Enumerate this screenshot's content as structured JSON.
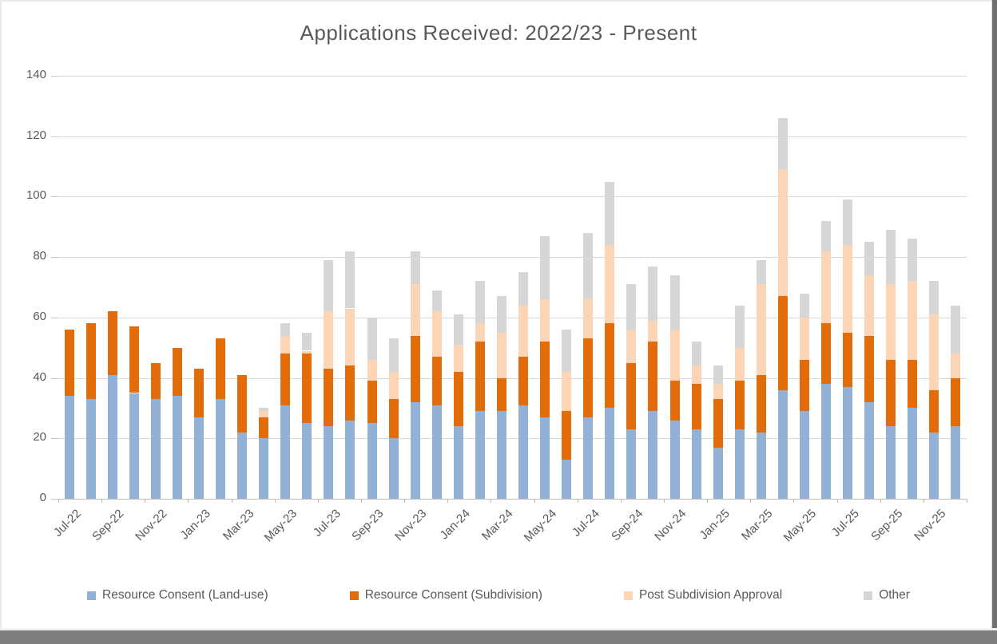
{
  "window": {
    "bottom_bar_color": "#7f7f7f",
    "right_border_color": "#6f6f6f"
  },
  "colors": {
    "text": "#595959",
    "gridline": "#d9d9d9",
    "axis": "#bfbfbf",
    "background": "#ffffff"
  },
  "chart_data": {
    "type": "bar",
    "variant": "stacked-column",
    "title": "Applications Received: 2022/23 - Present",
    "xlabel": "",
    "ylabel": "",
    "ylim": [
      0,
      140
    ],
    "ytick_step": 20,
    "grid": true,
    "legend_position": "bottom",
    "x_label_every": 2,
    "categories": [
      "Jul-22",
      "Aug-22",
      "Sep-22",
      "Oct-22",
      "Nov-22",
      "Dec-22",
      "Jan-23",
      "Feb-23",
      "Mar-23",
      "Apr-23",
      "May-23",
      "Jun-23",
      "Jul-23",
      "Aug-23",
      "Sep-23",
      "Oct-23",
      "Nov-23",
      "Dec-23",
      "Jan-24",
      "Feb-24",
      "Mar-24",
      "Apr-24",
      "May-24",
      "Jun-24",
      "Jul-24",
      "Aug-24",
      "Sep-24",
      "Oct-24",
      "Nov-24",
      "Dec-24",
      "Jan-25",
      "Feb-25",
      "Mar-25",
      "Apr-25",
      "May-25",
      "Jun-25",
      "Jul-25",
      "Aug-25",
      "Sep-25",
      "Oct-25",
      "Nov-25",
      "Dec-25"
    ],
    "series": [
      {
        "name": "Resource Consent (Land-use)",
        "color": "#92b1d5",
        "values": [
          34,
          33,
          41,
          35,
          33,
          34,
          27,
          33,
          22,
          20,
          31,
          25,
          24,
          26,
          25,
          20,
          32,
          31,
          24,
          29,
          29,
          31,
          27,
          13,
          27,
          30,
          23,
          29,
          26,
          23,
          17,
          23,
          22,
          36,
          29,
          38,
          37,
          32,
          24,
          30,
          22,
          24
        ]
      },
      {
        "name": "Resource Consent (Subdivision)",
        "color": "#e36c0a",
        "values": [
          22,
          25,
          21,
          22,
          12,
          16,
          16,
          20,
          19,
          7,
          17,
          23,
          19,
          18,
          14,
          13,
          22,
          16,
          18,
          23,
          11,
          16,
          25,
          16,
          26,
          28,
          22,
          23,
          13,
          15,
          16,
          16,
          19,
          31,
          17,
          20,
          18,
          22,
          22,
          16,
          14,
          16
        ]
      },
      {
        "name": "Post Subdivision Approval",
        "color": "#fbd5b5",
        "values": [
          0,
          0,
          0,
          0,
          0,
          0,
          0,
          0,
          0,
          2,
          6,
          1,
          19,
          19,
          7,
          9,
          17,
          15,
          9,
          6,
          15,
          17,
          14,
          13,
          13,
          26,
          11,
          7,
          17,
          6,
          5,
          11,
          30,
          42,
          14,
          24,
          29,
          20,
          25,
          26,
          25,
          8
        ]
      },
      {
        "name": "Other",
        "color": "#d6d6d6",
        "values": [
          0,
          0,
          0,
          0,
          0,
          0,
          0,
          0,
          0,
          1,
          4,
          6,
          17,
          19,
          14,
          11,
          11,
          7,
          10,
          14,
          12,
          11,
          21,
          14,
          22,
          21,
          15,
          18,
          18,
          8,
          6,
          14,
          8,
          17,
          8,
          10,
          15,
          11,
          18,
          14,
          11,
          16
        ]
      }
    ]
  }
}
